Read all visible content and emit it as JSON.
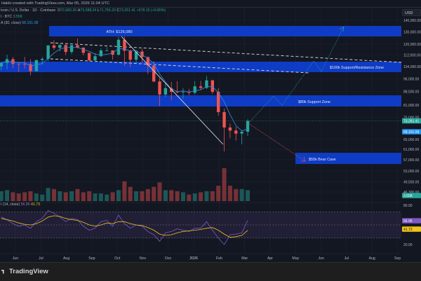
{
  "header": {
    "attribution": "Hakki created with TradingView.com, Mar 05, 2026 11:04 UTC"
  },
  "legend": {
    "symbol": "tcoin / U.S. Dollar · 1D · Coinbase",
    "open_label": "O",
    "open": "72,683.26",
    "high_label": "H",
    "high": "73,588.24",
    "low_label": "L",
    "low": "71,755.20",
    "close_label": "C",
    "close": "73,261.41",
    "change": "+578.15 (+0.80%)",
    "volume_label": "l · BTC",
    "volume": "3.55K",
    "ma_label": "A (30, close)",
    "ma": "68,151.08",
    "rsi_label": "I (14, close)",
    "rsi": "56.95",
    "rsi_ma": "41.73"
  },
  "currency": "USD",
  "footer": {
    "brand": "TradingView"
  },
  "colors": {
    "background": "#131722",
    "up": "#26a69a",
    "down": "#ef5350",
    "zone": "#0f3cc4",
    "ma": "#2f83d0",
    "rsi": "#7e57c2",
    "rsi_ma": "#f0c419",
    "bull_path": "#26a69a",
    "bear_path": "#ef5350"
  },
  "annotations": {
    "ath": "ATH: $126,080",
    "zone_100k": "$100k Support/Resistance Zone",
    "zone_80k": "$80k Support Zone",
    "bear_case": "$55k Bear Case"
  },
  "chart_data": {
    "type": "candlestick",
    "scale": "log",
    "grid": true,
    "price_ticks": [
      "140,000.00",
      "130,000.00",
      "120,000.00",
      "112,000.00",
      "104,000.00",
      "96,000.00",
      "88,500.00",
      "81,000.00",
      "75,000.00",
      "65,000.00",
      "61,000.00",
      "57,000.00",
      "53,000.00",
      "49,500.00",
      "46,300.00"
    ],
    "price_tick_values": [
      140000,
      130000,
      120000,
      112000,
      104000,
      96000,
      88500,
      81000,
      75000,
      65000,
      61000,
      57000,
      53000,
      49500,
      46300
    ],
    "price_tags": {
      "last": "73,261.41",
      "ma": "68,151.08",
      "volume": "3.55K",
      "rsi": "56.95",
      "rsi_ma": "41.73"
    },
    "rsi_ticks": [
      "80.00",
      "20.00"
    ],
    "time_ticks": [
      "Jun",
      "Jul",
      "Aug",
      "Sep",
      "Oct",
      "Nov",
      "Dec",
      "2026",
      "Feb",
      "Mar",
      "Apr",
      "May",
      "Jun",
      "Jul",
      "Aug",
      "Sep"
    ],
    "weeks": [
      "2025-05-12",
      "2025-05-19",
      "2025-05-26",
      "2025-06-02",
      "2025-06-09",
      "2025-06-16",
      "2025-06-23",
      "2025-06-30",
      "2025-07-07",
      "2025-07-14",
      "2025-07-21",
      "2025-07-28",
      "2025-08-04",
      "2025-08-11",
      "2025-08-18",
      "2025-08-25",
      "2025-09-01",
      "2025-09-08",
      "2025-09-15",
      "2025-09-22",
      "2025-09-29",
      "2025-10-06",
      "2025-10-13",
      "2025-10-20",
      "2025-10-27",
      "2025-11-03",
      "2025-11-10",
      "2025-11-17",
      "2025-11-24",
      "2025-12-01",
      "2025-12-08",
      "2025-12-15",
      "2025-12-22",
      "2025-12-29",
      "2026-01-05",
      "2026-01-12",
      "2026-01-19",
      "2026-01-26",
      "2026-02-02",
      "2026-02-09",
      "2026-02-16",
      "2026-02-23",
      "2026-03-02"
    ],
    "ohlc": [
      [
        104000,
        106500,
        101500,
        106400
      ],
      [
        106400,
        112000,
        102000,
        109000
      ],
      [
        109000,
        110500,
        103000,
        105700
      ],
      [
        105700,
        106800,
        100400,
        105600
      ],
      [
        105600,
        110500,
        102700,
        105500
      ],
      [
        105500,
        108900,
        98200,
        100900
      ],
      [
        100900,
        108500,
        100800,
        108400
      ],
      [
        108400,
        110500,
        105200,
        109200
      ],
      [
        109200,
        119000,
        107500,
        119100
      ],
      [
        119100,
        123200,
        115700,
        117300
      ],
      [
        117300,
        120200,
        114700,
        119400
      ],
      [
        119400,
        119800,
        112000,
        114200
      ],
      [
        114200,
        119300,
        112600,
        119300
      ],
      [
        119300,
        124500,
        116800,
        117400
      ],
      [
        117400,
        117600,
        111700,
        113500
      ],
      [
        113500,
        113600,
        107300,
        108200
      ],
      [
        108200,
        113400,
        107300,
        111100
      ],
      [
        111100,
        116800,
        110600,
        115300
      ],
      [
        115300,
        117900,
        114800,
        115300
      ],
      [
        115300,
        115400,
        108600,
        112200
      ],
      [
        112200,
        125700,
        111500,
        123500
      ],
      [
        123500,
        126080,
        104600,
        115100
      ],
      [
        115100,
        116000,
        103500,
        108600
      ],
      [
        108600,
        114000,
        106500,
        114500
      ],
      [
        114500,
        116400,
        106300,
        110500
      ],
      [
        110500,
        110700,
        99000,
        104700
      ],
      [
        104700,
        107500,
        94000,
        94400
      ],
      [
        94400,
        96600,
        80600,
        86800
      ],
      [
        86800,
        93100,
        85500,
        90400
      ],
      [
        90400,
        94100,
        83800,
        88300
      ],
      [
        88300,
        94600,
        87500,
        88100
      ],
      [
        88100,
        90400,
        84400,
        88400
      ],
      [
        88400,
        90000,
        86500,
        87800
      ],
      [
        87800,
        94700,
        86900,
        91500
      ],
      [
        91500,
        94800,
        89300,
        90600
      ],
      [
        90600,
        97900,
        90000,
        95100
      ],
      [
        95100,
        95500,
        87200,
        88300
      ],
      [
        88300,
        90500,
        75700,
        77500
      ],
      [
        77500,
        79300,
        60100,
        70200
      ],
      [
        70200,
        72000,
        65500,
        68800
      ],
      [
        68800,
        70500,
        64500,
        67500
      ],
      [
        67500,
        69000,
        63000,
        68300
      ],
      [
        68300,
        74000,
        66500,
        73261.41
      ]
    ],
    "volume": [
      9,
      10,
      8,
      7,
      8,
      9,
      7,
      6,
      12,
      11,
      9,
      8,
      9,
      11,
      8,
      9,
      7,
      7,
      6,
      8,
      10,
      18,
      13,
      9,
      9,
      11,
      13,
      17,
      10,
      10,
      9,
      8,
      6,
      7,
      8,
      9,
      9,
      14,
      30,
      14,
      11,
      11,
      10
    ],
    "rsi": [
      62,
      58,
      52,
      48,
      50,
      45,
      55,
      60,
      72,
      68,
      62,
      55,
      60,
      58,
      48,
      42,
      45,
      55,
      57,
      48,
      65,
      52,
      45,
      50,
      48,
      40,
      35,
      25,
      38,
      40,
      44,
      42,
      40,
      45,
      45,
      55,
      42,
      30,
      20,
      35,
      36,
      38,
      56.95
    ],
    "rsi_ma": [
      60,
      58,
      56,
      53,
      51,
      50,
      52,
      56,
      62,
      64,
      63,
      60,
      58,
      57,
      54,
      50,
      48,
      50,
      53,
      52,
      55,
      55,
      52,
      50,
      49,
      46,
      42,
      36,
      34,
      35,
      38,
      40,
      41,
      42,
      43,
      45,
      46,
      42,
      36,
      31,
      32,
      34,
      41.73
    ]
  }
}
